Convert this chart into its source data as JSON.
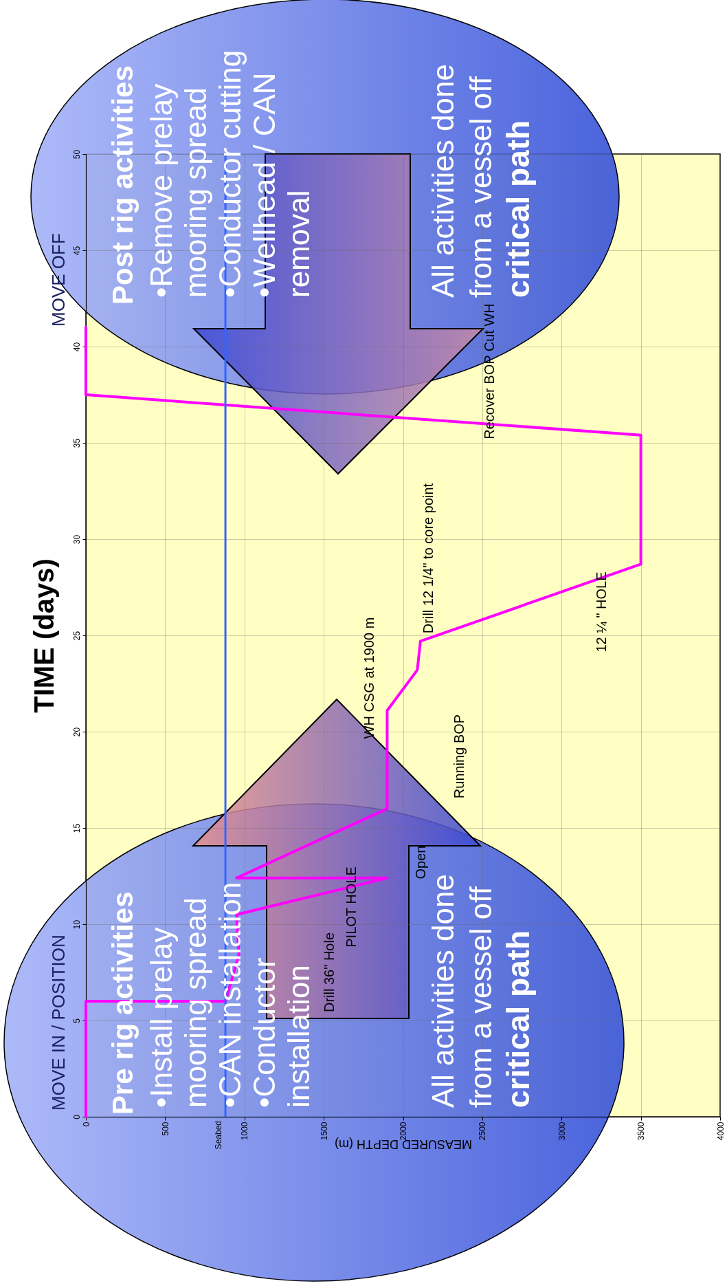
{
  "chart_data": {
    "type": "line",
    "xlabel": "MEASURED DEPTH (m)",
    "ylabel": "TIME (days)",
    "x": [
      0,
      0,
      880,
      965,
      950,
      1900,
      950,
      1900,
      1900,
      2090,
      2110,
      3500,
      3500,
      0,
      0
    ],
    "series": [
      {
        "color": "#ff00ff",
        "values": [
          0,
          6,
          6,
          8.4,
          10.5,
          12.4,
          12.4,
          16,
          21.1,
          23.2,
          24.7,
          28.7,
          35.4,
          37.5,
          41
        ]
      }
    ],
    "xlim": [
      0,
      4000
    ],
    "xticks": [
      0,
      500,
      1000,
      1500,
      2000,
      2500,
      3000,
      3500,
      4000
    ],
    "ylim": [
      0,
      50
    ],
    "yticks": [
      0,
      5,
      10,
      15,
      20,
      25,
      30,
      35,
      40,
      45,
      50
    ],
    "grid": true,
    "ref_lines": [
      {
        "axis": "x",
        "value": 880,
        "label": "Seabed",
        "color": "#3366ff"
      }
    ],
    "annotations": [
      "Drill 36\" Hole",
      "PILOT HOLE",
      "Open",
      "Running BOP",
      "WH CSG at 1900 m",
      "Drill 12 1/4\" to core point",
      "12 ¼ \" HOLE",
      "Recover BOP Cut WH",
      "MOVE IN / POSITION",
      "MOVE OFF",
      "Pre rig activities",
      "•Install prelay",
      "mooring spread",
      "•CAN installation",
      "•Conductor",
      "installation",
      "All activities done",
      "from a vessel off",
      "critical path",
      "Post rig activities",
      "•Remove prelay",
      "mooring spread",
      "•Conductor cutting",
      "•Wellhead / CAN",
      "removal",
      "All activities done",
      "from a vessel off",
      "critical path"
    ]
  }
}
